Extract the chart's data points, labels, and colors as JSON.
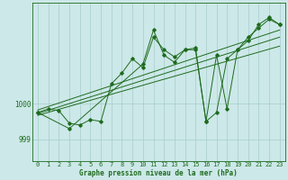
{
  "xlabel": "Graphe pression niveau de la mer (hPa)",
  "x_ticks": [
    0,
    1,
    2,
    3,
    4,
    5,
    6,
    7,
    8,
    9,
    10,
    11,
    12,
    13,
    14,
    15,
    16,
    17,
    18,
    19,
    20,
    21,
    22,
    23
  ],
  "ylim": [
    998.4,
    1002.8
  ],
  "yticks": [
    999,
    1000
  ],
  "ytick_labels": [
    "999",
    "1000"
  ],
  "bg_color": "#cce8e8",
  "grid_color": "#a8cccc",
  "line_color": "#1e6b1e",
  "series1_x": [
    0,
    1,
    2,
    3,
    4,
    5,
    6,
    7,
    8,
    9,
    10,
    11,
    12,
    13,
    14,
    15,
    16,
    17,
    18,
    19,
    20,
    21,
    22,
    23
  ],
  "series1_y": [
    999.75,
    999.85,
    999.8,
    999.45,
    999.4,
    999.55,
    999.5,
    1000.55,
    1000.85,
    1001.25,
    1001.0,
    1001.85,
    1001.5,
    1001.3,
    1001.5,
    1001.55,
    999.5,
    999.75,
    1001.25,
    1001.5,
    1001.85,
    1002.1,
    1002.35,
    1002.2
  ],
  "series2_x": [
    0,
    3,
    10,
    11,
    12,
    13,
    14,
    15,
    16,
    17,
    18,
    19,
    20,
    21,
    22,
    23
  ],
  "series2_y": [
    999.75,
    999.3,
    1001.1,
    1002.05,
    1001.35,
    1001.15,
    1001.5,
    1001.5,
    999.5,
    1001.35,
    999.85,
    1001.5,
    1001.75,
    1002.2,
    1002.4,
    1002.2
  ],
  "trend1_x": [
    0,
    23
  ],
  "trend1_y": [
    999.72,
    1001.85
  ],
  "trend2_x": [
    0,
    23
  ],
  "trend2_y": [
    999.82,
    1002.05
  ],
  "trend3_x": [
    0,
    23
  ],
  "trend3_y": [
    999.67,
    1001.6
  ],
  "tick_fontsize": 5,
  "xlabel_fontsize": 5.5,
  "linewidth": 0.7,
  "markersize": 1.8
}
